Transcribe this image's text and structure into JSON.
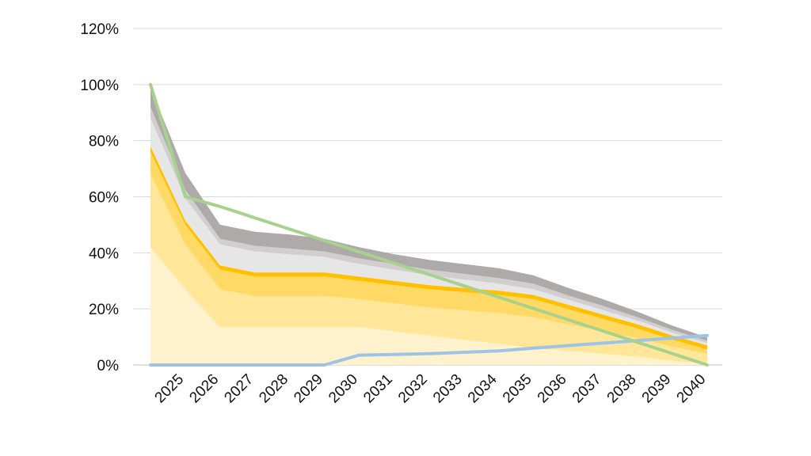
{
  "chart_data": {
    "type": "area",
    "title": "",
    "xlabel": "",
    "ylabel": "",
    "ylim": [
      0,
      120
    ],
    "y_tick_values": [
      0,
      20,
      40,
      60,
      80,
      100,
      120
    ],
    "y_tick_labels": [
      "0%",
      "20%",
      "40%",
      "60%",
      "80%",
      "100%",
      "120%"
    ],
    "x": [
      2024.3,
      2025.3,
      2026.3,
      2027.3,
      2028.3,
      2029.3,
      2030.3,
      2031.3,
      2032.3,
      2033.3,
      2034.3,
      2035.3,
      2036.3,
      2037.3,
      2038.3,
      2039.3,
      2040.3
    ],
    "x_ticks": [
      "2025",
      "2026",
      "2027",
      "2028",
      "2029",
      "2030",
      "2031",
      "2032",
      "2033",
      "2034",
      "2035",
      "2036",
      "2037",
      "2038",
      "2039",
      "2040"
    ],
    "x_tick_positions": [
      2025,
      2026,
      2027,
      2028,
      2029,
      2030,
      2031,
      2032,
      2033,
      2034,
      2035,
      2036,
      2037,
      2038,
      2039,
      2040
    ],
    "xlim": [
      2024,
      2041
    ],
    "grid": true,
    "stacked_series": [
      {
        "color": "#FFF2CC",
        "values": [
          42,
          27,
          13.5,
          13.5,
          13.5,
          13.5,
          13.5,
          12,
          10.5,
          9,
          7.5,
          6,
          5,
          4,
          3,
          1.5,
          0.5
        ]
      },
      {
        "color": "#FFE699",
        "values": [
          26,
          16,
          13.5,
          11,
          11,
          11,
          10,
          10,
          10,
          10.5,
          11,
          11,
          9.5,
          8,
          6.5,
          5,
          3.5
        ]
      },
      {
        "color": "#FFD966",
        "values": [
          8,
          7,
          7,
          7,
          7,
          7,
          6.5,
          6.5,
          6.5,
          6.5,
          6.5,
          6.5,
          5.5,
          4.5,
          3.5,
          2.5,
          1.5
        ]
      },
      {
        "color": "#FFC000",
        "values": [
          2,
          1.5,
          1.5,
          1.5,
          1.5,
          1.5,
          1.5,
          1.5,
          1.5,
          1.5,
          1.5,
          1.5,
          1.5,
          1.5,
          1.5,
          1.5,
          1.5
        ]
      },
      {
        "color": "#E6E6E6",
        "values": [
          10,
          8,
          7.5,
          7.5,
          6.5,
          5.5,
          4.5,
          4,
          3.5,
          3,
          2.5,
          2,
          1.8,
          1.6,
          1.3,
          1,
          0.8
        ]
      },
      {
        "color": "#D0CECE",
        "values": [
          4,
          3,
          2,
          2,
          2,
          2,
          2,
          2,
          2,
          2,
          2,
          2,
          1.5,
          1.5,
          1.2,
          1,
          0.8
        ]
      },
      {
        "color": "#AEAAAA",
        "values": [
          7,
          6,
          5,
          5,
          5,
          4.5,
          4,
          3.5,
          3.5,
          3.5,
          3.5,
          3,
          2.7,
          2.4,
          2,
          1.5,
          1.2
        ]
      }
    ],
    "lines": [
      {
        "color": "#9DC3E6",
        "x": [
          2024.3,
          2029.3,
          2030.3,
          2032.3,
          2034.3,
          2035.3,
          2040.3
        ],
        "values": [
          0,
          0,
          3.5,
          4,
          5,
          6,
          10.5
        ]
      },
      {
        "color": "#A9D18E",
        "x": [
          2024.3,
          2025.3,
          2026.3,
          2040.3
        ],
        "values": [
          100,
          60,
          56.5,
          0
        ]
      }
    ]
  }
}
